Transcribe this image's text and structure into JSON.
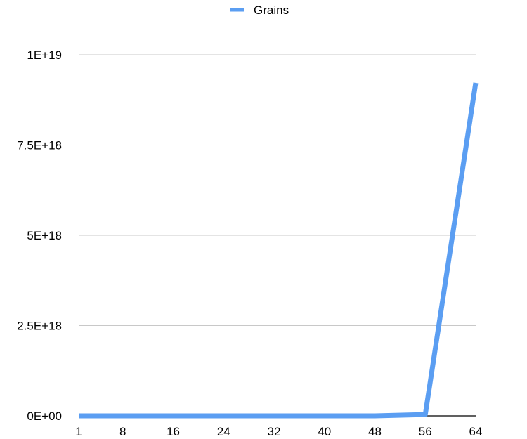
{
  "chart_data": {
    "type": "line",
    "x": [
      1,
      8,
      16,
      24,
      32,
      40,
      48,
      56,
      64
    ],
    "series": [
      {
        "name": "Grains",
        "color": "#5b9ef2",
        "values": [
          1,
          128,
          32768,
          8388608,
          2147483648,
          549755813888,
          140737488355328,
          36028797018963968,
          9223372036854775808
        ]
      }
    ],
    "xticks": [
      "1",
      "8",
      "16",
      "24",
      "32",
      "40",
      "48",
      "56",
      "64"
    ],
    "yticks": [
      {
        "value": 0,
        "label": "0E+00"
      },
      {
        "value": 2500000000000000000,
        "label": "2.5E+18"
      },
      {
        "value": 5000000000000000000,
        "label": "5E+18"
      },
      {
        "value": 7500000000000000000,
        "label": "7.5E+18"
      },
      {
        "value": 10000000000000000000,
        "label": "1E+19"
      }
    ],
    "ylim": [
      0,
      10000000000000000000
    ],
    "grid": true,
    "legend_position": "top-center"
  }
}
